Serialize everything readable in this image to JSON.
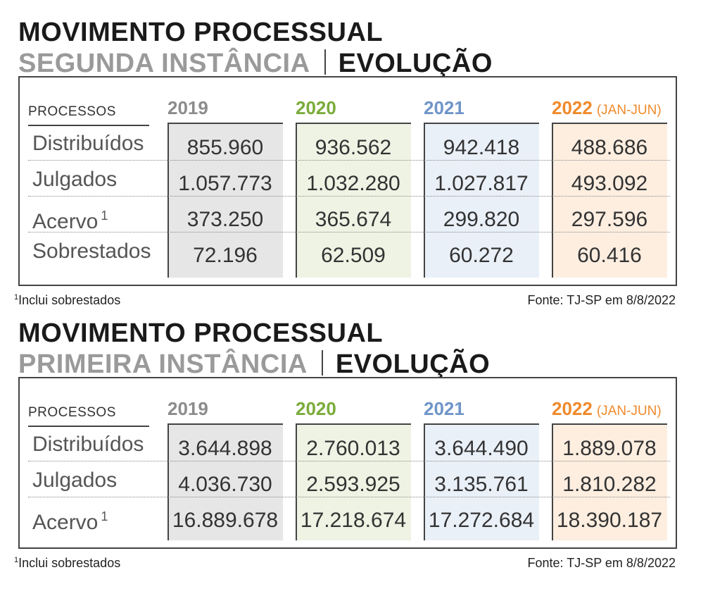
{
  "colors": {
    "y2019": "#8c8c8c",
    "y2020": "#7aac3a",
    "y2021": "#6f95c9",
    "y2022": "#f08a2c",
    "bg2019": "#e6e6e6",
    "bg2020": "#eef3e4",
    "bg2021": "#eaf0f8",
    "bg2022": "#fdeee0"
  },
  "columns": [
    {
      "year": "2019",
      "suffix": ""
    },
    {
      "year": "2020",
      "suffix": ""
    },
    {
      "year": "2021",
      "suffix": ""
    },
    {
      "year": "2022",
      "suffix": "(JAN-JUN)"
    }
  ],
  "blocks": [
    {
      "title": "MOVIMENTO PROCESSUAL",
      "subtitle": "SEGUNDA INSTÂNCIA",
      "subtitle_right": "EVOLUÇÃO",
      "rows_header": "PROCESSOS",
      "rows": [
        {
          "label": "Distribuídos",
          "sup": "",
          "values": [
            "855.960",
            "936.562",
            "942.418",
            "488.686"
          ]
        },
        {
          "label": "Julgados",
          "sup": "",
          "values": [
            "1.057.773",
            "1.032.280",
            "1.027.817",
            "493.092"
          ]
        },
        {
          "label": "Acervo",
          "sup": "1",
          "values": [
            "373.250",
            "365.674",
            "299.820",
            "297.596"
          ]
        },
        {
          "label": "Sobrestados",
          "sup": "",
          "values": [
            "72.196",
            "62.509",
            "60.272",
            "60.416"
          ]
        }
      ],
      "footnote_mark": "1",
      "footnote": "Inclui sobrestados",
      "source": "Fonte: TJ-SP em 8/8/2022"
    },
    {
      "title": "MOVIMENTO PROCESSUAL",
      "subtitle": "PRIMEIRA INSTÂNCIA",
      "subtitle_right": "EVOLUÇÃO",
      "rows_header": "PROCESSOS",
      "rows": [
        {
          "label": "Distribuídos",
          "sup": "",
          "values": [
            "3.644.898",
            "2.760.013",
            "3.644.490",
            "1.889.078"
          ]
        },
        {
          "label": "Julgados",
          "sup": "",
          "values": [
            "4.036.730",
            "2.593.925",
            "3.135.761",
            "1.810.282"
          ]
        },
        {
          "label": "Acervo",
          "sup": "1",
          "values": [
            "16.889.678",
            "17.218.674",
            "17.272.684",
            "18.390.187"
          ]
        }
      ],
      "footnote_mark": "1",
      "footnote": "Inclui sobrestados",
      "source": "Fonte: TJ-SP em 8/8/2022"
    }
  ],
  "chart_data": [
    {
      "type": "table",
      "title": "MOVIMENTO PROCESSUAL",
      "subtitle": "SEGUNDA INSTÂNCIA | EVOLUÇÃO",
      "columns": [
        "2019",
        "2020",
        "2021",
        "2022 (JAN-JUN)"
      ],
      "rows": [
        "Distribuídos",
        "Julgados",
        "Acervo",
        "Sobrestados"
      ],
      "values": [
        [
          855960,
          936562,
          942418,
          488686
        ],
        [
          1057773,
          1032280,
          1027817,
          493092
        ],
        [
          373250,
          365674,
          299820,
          297596
        ],
        [
          72196,
          62509,
          60272,
          60416
        ]
      ]
    },
    {
      "type": "table",
      "title": "MOVIMENTO PROCESSUAL",
      "subtitle": "PRIMEIRA INSTÂNCIA | EVOLUÇÃO",
      "columns": [
        "2019",
        "2020",
        "2021",
        "2022 (JAN-JUN)"
      ],
      "rows": [
        "Distribuídos",
        "Julgados",
        "Acervo"
      ],
      "values": [
        [
          3644898,
          2760013,
          3644490,
          1889078
        ],
        [
          4036730,
          2593925,
          3135761,
          1810282
        ],
        [
          16889678,
          17218674,
          17272684,
          18390187
        ]
      ]
    }
  ]
}
